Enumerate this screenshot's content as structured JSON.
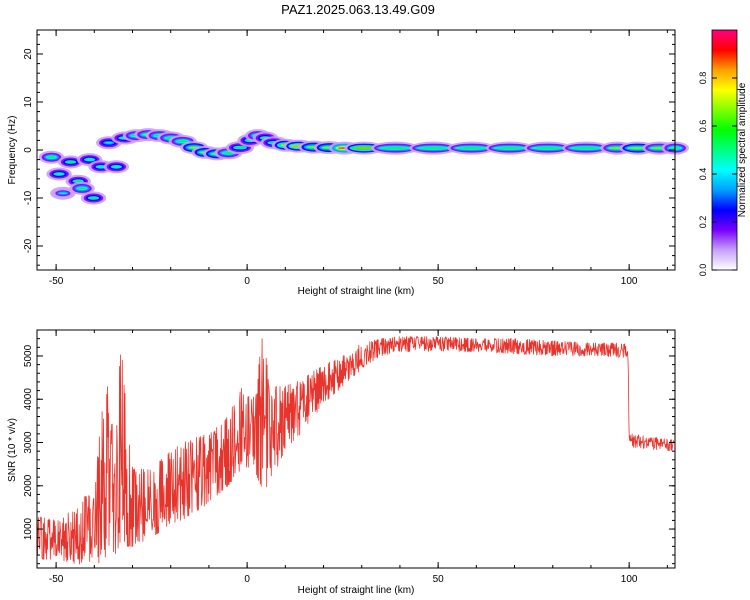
{
  "figure": {
    "title": "PAZ1.2025.063.13.49.G09"
  },
  "chart_data": [
    {
      "type": "heatmap",
      "title": "PAZ1.2025.063.13.49.G09",
      "xlabel": "Height of straight line (km)",
      "ylabel": "Frequency (Hz)",
      "xlim": [
        -55,
        112
      ],
      "ylim": [
        -25,
        25
      ],
      "xticks": [
        -50,
        0,
        50,
        100
      ],
      "yticks": [
        -20,
        -10,
        0,
        10,
        20
      ],
      "grid": false,
      "colorbar": {
        "label": "Normalized spectral amplitude",
        "range": [
          0.0,
          1.0
        ],
        "ticks": [
          0.0,
          0.2,
          0.4,
          0.6,
          0.8
        ],
        "colors": [
          "#ffffff",
          "#c8a0ff",
          "#7800ff",
          "#0000ff",
          "#00a0ff",
          "#00ffff",
          "#00ff80",
          "#00ff00",
          "#80ff00",
          "#ffff00",
          "#ffa000",
          "#ff0000",
          "#ff0080"
        ]
      },
      "ridge": [
        {
          "x": -52,
          "y": -1.5,
          "a": 0.6
        },
        {
          "x": -50,
          "y": -5,
          "a": 0.5
        },
        {
          "x": -49,
          "y": -9,
          "a": 0.4
        },
        {
          "x": -47,
          "y": -2.5,
          "a": 0.55
        },
        {
          "x": -45,
          "y": -6.5,
          "a": 0.55
        },
        {
          "x": -44,
          "y": -8,
          "a": 0.6
        },
        {
          "x": -42,
          "y": -2,
          "a": 0.5
        },
        {
          "x": -41,
          "y": -10,
          "a": 0.55
        },
        {
          "x": -39,
          "y": -3.5,
          "a": 0.5
        },
        {
          "x": -37,
          "y": 1.5,
          "a": 0.45
        },
        {
          "x": -35,
          "y": -3.5,
          "a": 0.5
        },
        {
          "x": -33,
          "y": 2.5,
          "a": 0.5
        },
        {
          "x": -30,
          "y": 3,
          "a": 0.6
        },
        {
          "x": -27,
          "y": 3.2,
          "a": 0.65
        },
        {
          "x": -24,
          "y": 3,
          "a": 0.6
        },
        {
          "x": -21,
          "y": 2.5,
          "a": 0.6
        },
        {
          "x": -18,
          "y": 1.8,
          "a": 0.6
        },
        {
          "x": -15,
          "y": 0.5,
          "a": 0.7
        },
        {
          "x": -12,
          "y": -0.5,
          "a": 0.7
        },
        {
          "x": -9,
          "y": -0.8,
          "a": 0.7
        },
        {
          "x": -6,
          "y": -0.6,
          "a": 0.6
        },
        {
          "x": -3,
          "y": 0.5,
          "a": 0.55
        },
        {
          "x": 0,
          "y": 2,
          "a": 0.55
        },
        {
          "x": 2,
          "y": 3,
          "a": 0.6
        },
        {
          "x": 4,
          "y": 2.5,
          "a": 0.55
        },
        {
          "x": 6,
          "y": 1.5,
          "a": 0.55
        },
        {
          "x": 9,
          "y": 1,
          "a": 0.75
        },
        {
          "x": 12,
          "y": 0.8,
          "a": 0.85
        },
        {
          "x": 16,
          "y": 0.6,
          "a": 0.7
        },
        {
          "x": 20,
          "y": 0.5,
          "a": 0.7
        },
        {
          "x": 24,
          "y": 0.4,
          "a": 1.0
        },
        {
          "x": 28,
          "y": 0.4,
          "a": 0.8
        },
        {
          "x": 35,
          "y": 0.4,
          "a": 0.6
        },
        {
          "x": 45,
          "y": 0.4,
          "a": 0.6
        },
        {
          "x": 55,
          "y": 0.4,
          "a": 0.6
        },
        {
          "x": 65,
          "y": 0.4,
          "a": 0.6
        },
        {
          "x": 75,
          "y": 0.4,
          "a": 0.6
        },
        {
          "x": 85,
          "y": 0.4,
          "a": 0.6
        },
        {
          "x": 95,
          "y": 0.4,
          "a": 0.65
        },
        {
          "x": 100,
          "y": 0.4,
          "a": 0.7
        },
        {
          "x": 106,
          "y": 0.4,
          "a": 0.65
        },
        {
          "x": 111,
          "y": 0.4,
          "a": 0.6
        }
      ]
    },
    {
      "type": "line",
      "xlabel": "Height of straight line (km)",
      "ylabel": "SNR (10 * v/v)",
      "xlim": [
        -55,
        112
      ],
      "ylim": [
        100,
        5600
      ],
      "xticks": [
        -50,
        0,
        50,
        100
      ],
      "yticks": [
        1000,
        2000,
        3000,
        4000,
        5000
      ],
      "grid": false,
      "color": "#e8342c",
      "envelope": [
        {
          "x": -55,
          "lo": 300,
          "hi": 1300
        },
        {
          "x": -50,
          "lo": 300,
          "hi": 1200
        },
        {
          "x": -45,
          "lo": 200,
          "hi": 1500
        },
        {
          "x": -40,
          "lo": 150,
          "hi": 2000
        },
        {
          "x": -37,
          "lo": 300,
          "hi": 4700
        },
        {
          "x": -35,
          "lo": 400,
          "hi": 3200
        },
        {
          "x": -33,
          "lo": 500,
          "hi": 5200
        },
        {
          "x": -30,
          "lo": 600,
          "hi": 2400
        },
        {
          "x": -25,
          "lo": 800,
          "hi": 2400
        },
        {
          "x": -20,
          "lo": 1100,
          "hi": 2800
        },
        {
          "x": -15,
          "lo": 1300,
          "hi": 3100
        },
        {
          "x": -10,
          "lo": 1600,
          "hi": 3200
        },
        {
          "x": -5,
          "lo": 2000,
          "hi": 3600
        },
        {
          "x": -1,
          "lo": 2400,
          "hi": 4400
        },
        {
          "x": 2,
          "lo": 2400,
          "hi": 4000
        },
        {
          "x": 4,
          "lo": 1800,
          "hi": 5600
        },
        {
          "x": 6,
          "lo": 2100,
          "hi": 4300
        },
        {
          "x": 10,
          "lo": 2800,
          "hi": 4300
        },
        {
          "x": 15,
          "lo": 3300,
          "hi": 4500
        },
        {
          "x": 20,
          "lo": 3900,
          "hi": 4800
        },
        {
          "x": 25,
          "lo": 4300,
          "hi": 5000
        },
        {
          "x": 30,
          "lo": 4700,
          "hi": 5300
        },
        {
          "x": 35,
          "lo": 5000,
          "hi": 5400
        },
        {
          "x": 40,
          "lo": 5100,
          "hi": 5450
        },
        {
          "x": 50,
          "lo": 5100,
          "hi": 5450
        },
        {
          "x": 60,
          "lo": 5100,
          "hi": 5400
        },
        {
          "x": 70,
          "lo": 5050,
          "hi": 5400
        },
        {
          "x": 80,
          "lo": 5000,
          "hi": 5350
        },
        {
          "x": 90,
          "lo": 5000,
          "hi": 5300
        },
        {
          "x": 99.7,
          "lo": 4950,
          "hi": 5300
        },
        {
          "x": 100,
          "lo": 2900,
          "hi": 3200
        },
        {
          "x": 105,
          "lo": 2850,
          "hi": 3150
        },
        {
          "x": 112,
          "lo": 2800,
          "hi": 3050
        }
      ]
    }
  ]
}
